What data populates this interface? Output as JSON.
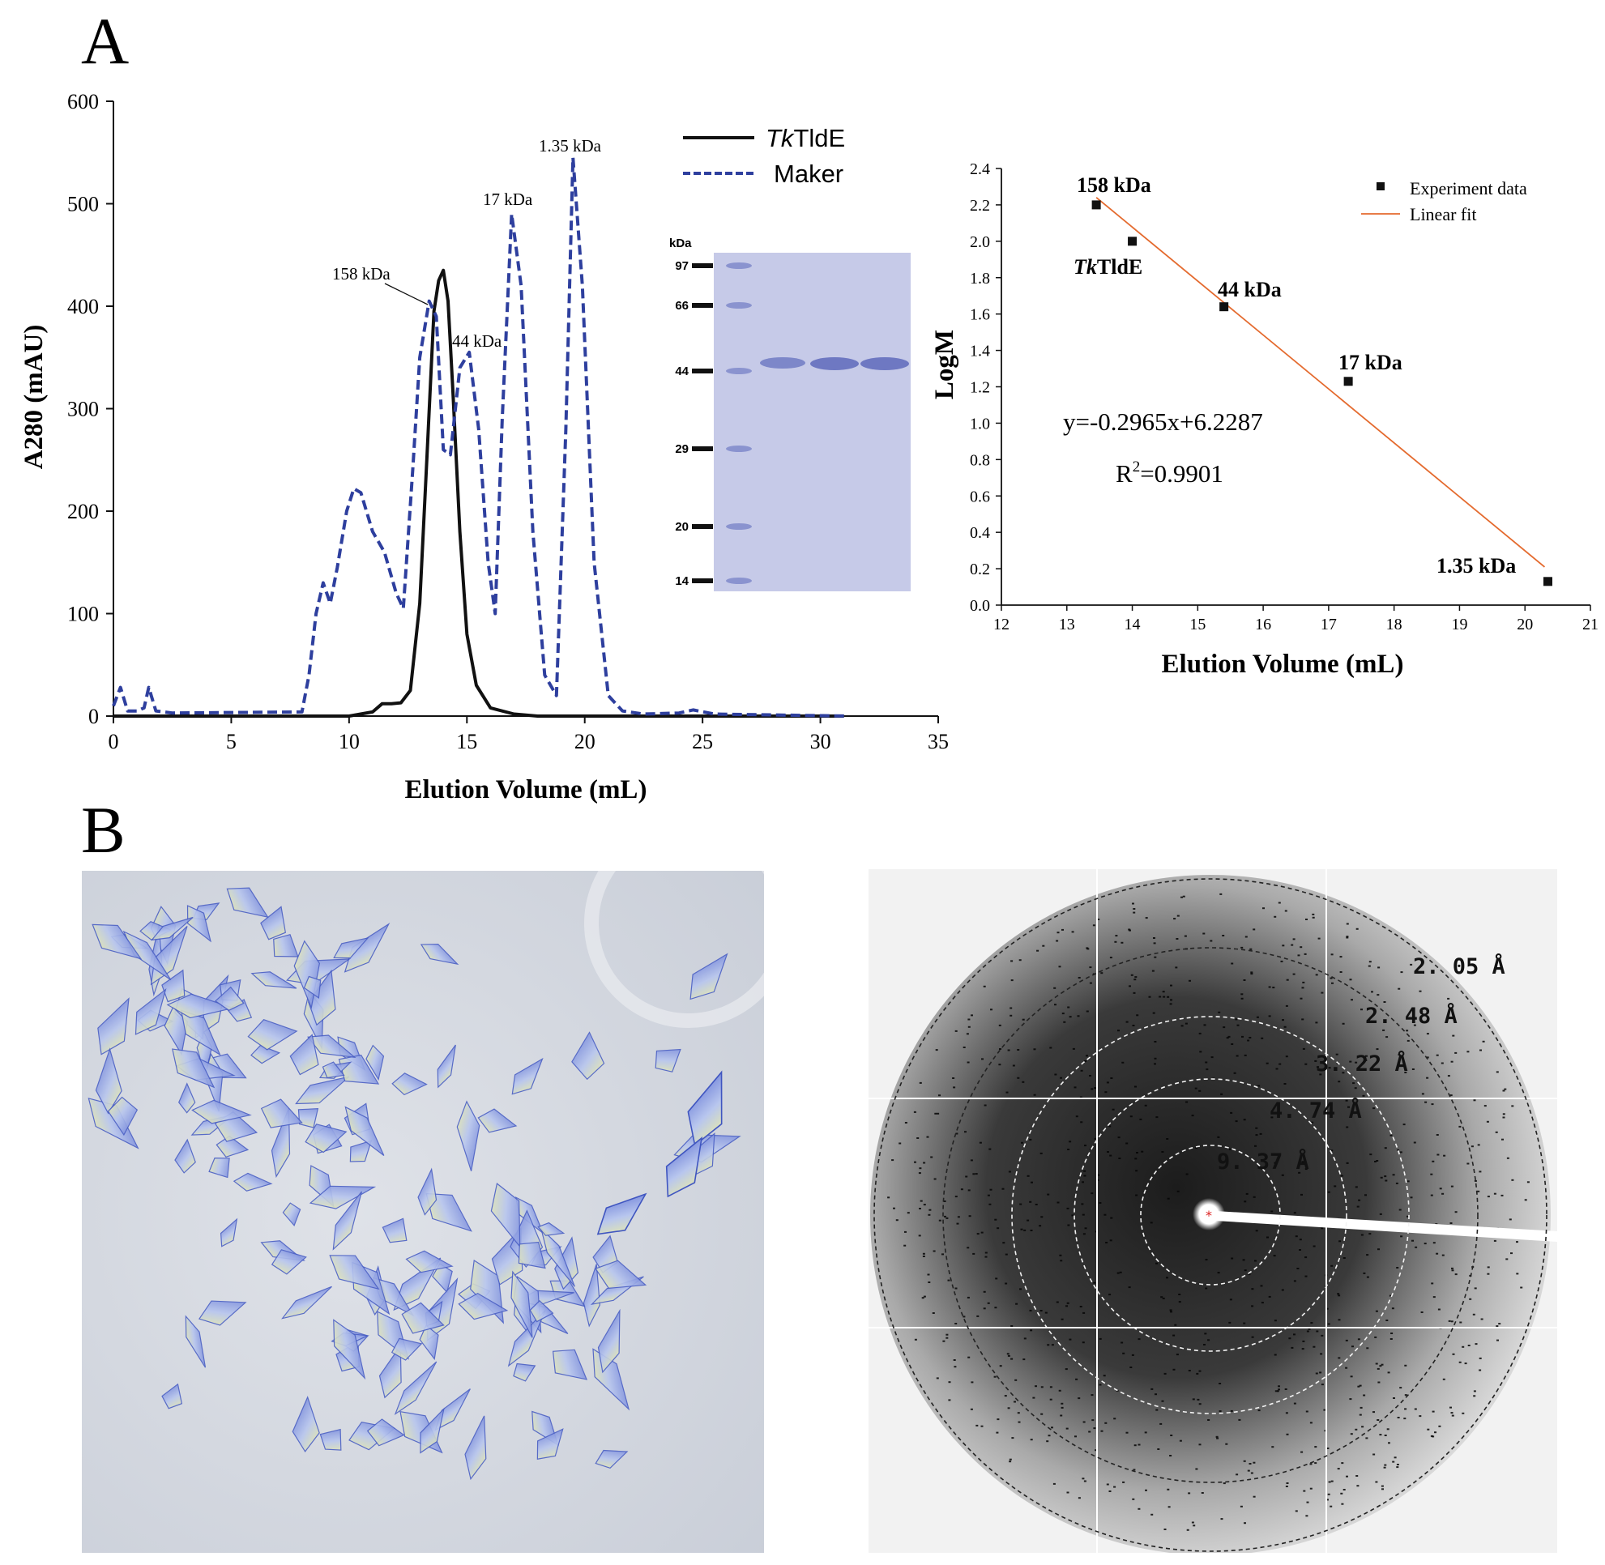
{
  "panel_labels": {
    "a": "A",
    "b": "B"
  },
  "colors": {
    "tktlde": "#111111",
    "marker": "#2e3f9e",
    "fit_line": "#e46a2e",
    "gel_bg": "#c6cae8",
    "gel_band": "#7d87c9",
    "crystal_bg": "#d4d8df",
    "crystal": "#6f86d6"
  },
  "chart_data": [
    {
      "type": "line",
      "xlabel": "Elution Volume (mL)",
      "ylabel": "A280 (mAU)",
      "xlim": [
        0,
        35
      ],
      "ylim": [
        0,
        600
      ],
      "x_ticks": [
        "0",
        "5",
        "10",
        "15",
        "20",
        "25",
        "30",
        "35"
      ],
      "y_ticks": [
        "0",
        "100",
        "200",
        "300",
        "400",
        "500",
        "600"
      ],
      "legend": {
        "placement": "top-right",
        "entries": [
          {
            "name_italic": "Tk",
            "name_rest": "TldE",
            "style": "solid"
          },
          {
            "name": "Maker",
            "style": "dashed"
          }
        ]
      },
      "series": [
        {
          "name": "TkTldE",
          "style": "solid",
          "x": [
            0,
            10,
            11,
            11.4,
            11.8,
            12.2,
            12.6,
            13.0,
            13.3,
            13.6,
            13.8,
            14.0,
            14.2,
            14.4,
            14.7,
            15.0,
            15.4,
            16,
            17,
            18,
            25,
            31
          ],
          "y": [
            0,
            0,
            4,
            12,
            12,
            13,
            25,
            110,
            250,
            395,
            425,
            435,
            405,
            320,
            180,
            80,
            30,
            8,
            2,
            0,
            0,
            0
          ]
        },
        {
          "name": "Maker",
          "style": "dashed",
          "x": [
            0,
            0.3,
            0.6,
            1.0,
            1.3,
            1.5,
            1.8,
            2.5,
            8.0,
            8.3,
            8.6,
            8.9,
            9.2,
            9.5,
            9.9,
            10.2,
            10.5,
            11.0,
            11.5,
            12.0,
            12.3,
            12.7,
            13.0,
            13.4,
            13.7,
            14.0,
            14.3,
            14.7,
            15.1,
            15.5,
            15.9,
            16.2,
            16.5,
            16.9,
            17.3,
            17.8,
            18.3,
            18.8,
            19.2,
            19.5,
            19.9,
            20.4,
            21.0,
            21.6,
            22.5,
            24.0,
            24.6,
            25.5,
            31.2
          ],
          "y": [
            10,
            28,
            5,
            5,
            8,
            28,
            5,
            3,
            4,
            40,
            100,
            130,
            110,
            145,
            200,
            222,
            218,
            180,
            160,
            120,
            105,
            240,
            350,
            405,
            390,
            260,
            255,
            340,
            355,
            280,
            150,
            100,
            290,
            490,
            420,
            180,
            40,
            20,
            280,
            545,
            420,
            150,
            20,
            5,
            2,
            3,
            6,
            2,
            0
          ]
        }
      ],
      "annotations": [
        "158 kDa",
        "44 kDa",
        "17 kDa",
        "1.35 kDa"
      ]
    },
    {
      "type": "scatter",
      "xlabel": "Elution Volume (mL)",
      "ylabel": "LogM",
      "xlim": [
        12,
        21
      ],
      "ylim": [
        0,
        2.4
      ],
      "x_ticks": [
        "12",
        "13",
        "14",
        "15",
        "16",
        "17",
        "18",
        "19",
        "20",
        "21"
      ],
      "y_ticks": [
        "0.0",
        "0.2",
        "0.4",
        "0.6",
        "0.8",
        "1.0",
        "1.2",
        "1.4",
        "1.6",
        "1.8",
        "2.0",
        "2.2",
        "2.4"
      ],
      "legend": {
        "placement": "top-right",
        "entries": [
          {
            "name": "Experiment data",
            "style": "square"
          },
          {
            "name": "Linear fit",
            "style": "line"
          }
        ]
      },
      "points": [
        {
          "label": "158 kDa",
          "x": 13.45,
          "y": 2.2
        },
        {
          "label_italic": "Tk",
          "label_rest": "TldE",
          "x": 14.0,
          "y": 2.0
        },
        {
          "label": "44 kDa",
          "x": 15.4,
          "y": 1.64
        },
        {
          "label": "17 kDa",
          "x": 17.3,
          "y": 1.23
        },
        {
          "label": "1.35 kDa",
          "x": 20.35,
          "y": 0.13
        }
      ],
      "fit": {
        "x": [
          13.45,
          20.3
        ],
        "slope": -0.2965,
        "intercept": 6.2287
      },
      "equation": "y=-0.2965x+6.2287",
      "r2_prefix": "R",
      "r2_sup": "2",
      "r2_value": "=0.9901"
    }
  ],
  "gel": {
    "unit": "kDa",
    "markers": [
      "97",
      "66",
      "44",
      "29",
      "20",
      "14"
    ],
    "marker_values": [
      97,
      66,
      44,
      29,
      20,
      14
    ],
    "sample_lanes": 3
  },
  "diffraction": {
    "rings": [
      "9. 37 Å",
      "4. 74 Å",
      "3. 22 Å",
      "2. 48 Å",
      "2. 05 Å"
    ]
  }
}
